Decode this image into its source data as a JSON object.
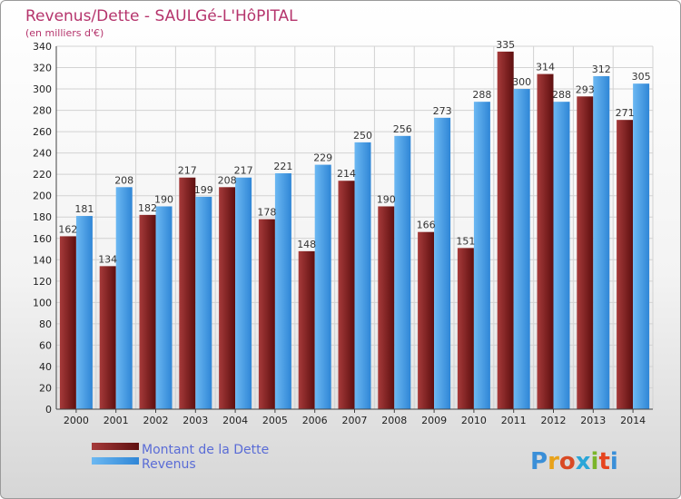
{
  "chart_data": {
    "type": "bar",
    "title": "Revenus/Dette - SAULGé-L'HôPITAL",
    "subtitle": "(en milliers d'€)",
    "categories": [
      "2000",
      "2001",
      "2002",
      "2003",
      "2004",
      "2005",
      "2006",
      "2007",
      "2008",
      "2009",
      "2010",
      "2011",
      "2012",
      "2013",
      "2014"
    ],
    "series": [
      {
        "name": "Montant de la Dette",
        "color": "#7b1c1c",
        "values": [
          162,
          134,
          182,
          217,
          208,
          178,
          148,
          214,
          190,
          166,
          151,
          335,
          314,
          293,
          271
        ]
      },
      {
        "name": "Revenus",
        "color": "#3d9be6",
        "values": [
          181,
          208,
          190,
          199,
          217,
          221,
          229,
          250,
          256,
          273,
          288,
          300,
          288,
          312,
          305
        ]
      }
    ],
    "ylim": [
      0,
      340
    ],
    "ytick_step": 20,
    "grid": true,
    "legend": "bottom-left"
  },
  "logo": {
    "text": "Proxiti",
    "letter_colors": [
      "#3a8fd8",
      "#e8a21a",
      "#d94a25",
      "#2aa6d8",
      "#7bb52a",
      "#e6451f",
      "#3a8fd8"
    ]
  }
}
